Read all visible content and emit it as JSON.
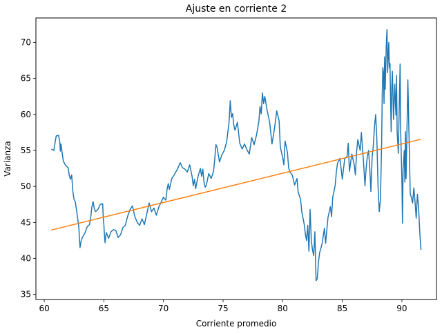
{
  "chart_data": {
    "type": "line",
    "title": "Ajuste en corriente 2",
    "xlabel": "Corriente promedio",
    "ylabel": "Varianza",
    "xlim": [
      59.3,
      92.9
    ],
    "ylim": [
      34.3,
      73.4
    ],
    "x_ticks": [
      60,
      65,
      70,
      75,
      80,
      85,
      90
    ],
    "y_ticks": [
      35,
      40,
      45,
      50,
      55,
      60,
      65,
      70
    ],
    "grid": false,
    "legend": "none",
    "series": [
      {
        "color": "#1f77b4",
        "points": [
          [
            60.6,
            55.2
          ],
          [
            60.8,
            55.0
          ],
          [
            61.0,
            57.0
          ],
          [
            61.2,
            57.1
          ],
          [
            61.3,
            56.2
          ],
          [
            61.35,
            54.9
          ],
          [
            61.4,
            55.9
          ],
          [
            61.6,
            53.5
          ],
          [
            61.8,
            52.9
          ],
          [
            62.0,
            52.6
          ],
          [
            62.1,
            51.5
          ],
          [
            62.2,
            51.0
          ],
          [
            62.3,
            51.6
          ],
          [
            62.4,
            49.3
          ],
          [
            62.5,
            48.2
          ],
          [
            62.6,
            47.9
          ],
          [
            62.7,
            46.8
          ],
          [
            62.8,
            45.6
          ],
          [
            62.9,
            44.3
          ],
          [
            63.0,
            41.5
          ],
          [
            63.1,
            42.5
          ],
          [
            63.2,
            42.9
          ],
          [
            63.4,
            43.5
          ],
          [
            63.6,
            44.4
          ],
          [
            63.8,
            44.7
          ],
          [
            63.9,
            45.8
          ],
          [
            64.0,
            47.2
          ],
          [
            64.1,
            47.9
          ],
          [
            64.2,
            46.9
          ],
          [
            64.3,
            46.5
          ],
          [
            64.5,
            46.8
          ],
          [
            64.7,
            47.5
          ],
          [
            64.9,
            47.6
          ],
          [
            64.95,
            45.6
          ],
          [
            65.0,
            44.7
          ],
          [
            65.05,
            43.2
          ],
          [
            65.1,
            42.2
          ],
          [
            65.2,
            43.6
          ],
          [
            65.4,
            42.8
          ],
          [
            65.6,
            43.7
          ],
          [
            65.8,
            44.0
          ],
          [
            66.0,
            43.9
          ],
          [
            66.2,
            42.9
          ],
          [
            66.4,
            43.3
          ],
          [
            66.6,
            44.3
          ],
          [
            66.8,
            44.6
          ],
          [
            67.0,
            45.9
          ],
          [
            67.2,
            46.8
          ],
          [
            67.4,
            47.3
          ],
          [
            67.6,
            45.8
          ],
          [
            67.8,
            45.0
          ],
          [
            68.0,
            44.6
          ],
          [
            68.2,
            45.5
          ],
          [
            68.4,
            44.7
          ],
          [
            68.6,
            46.2
          ],
          [
            68.8,
            47.7
          ],
          [
            69.0,
            46.5
          ],
          [
            69.2,
            47.0
          ],
          [
            69.4,
            46.0
          ],
          [
            69.6,
            47.1
          ],
          [
            69.8,
            47.8
          ],
          [
            70.0,
            48.5
          ],
          [
            70.2,
            48.1
          ],
          [
            70.3,
            49.6
          ],
          [
            70.4,
            50.4
          ],
          [
            70.5,
            49.6
          ],
          [
            70.7,
            51.1
          ],
          [
            70.9,
            51.6
          ],
          [
            71.2,
            52.5
          ],
          [
            71.4,
            53.3
          ],
          [
            71.6,
            52.6
          ],
          [
            71.8,
            52.4
          ],
          [
            72.0,
            52.0
          ],
          [
            72.2,
            53.0
          ],
          [
            72.4,
            51.4
          ],
          [
            72.5,
            50.1
          ],
          [
            72.6,
            51.0
          ],
          [
            72.7,
            49.7
          ],
          [
            72.9,
            51.4
          ],
          [
            73.1,
            52.5
          ],
          [
            73.2,
            51.4
          ],
          [
            73.3,
            52.4
          ],
          [
            73.4,
            50.6
          ],
          [
            73.5,
            49.9
          ],
          [
            73.6,
            50.2
          ],
          [
            73.8,
            51.8
          ],
          [
            74.0,
            51.1
          ],
          [
            74.2,
            52.1
          ],
          [
            74.3,
            53.8
          ],
          [
            74.4,
            55.8
          ],
          [
            74.5,
            55.4
          ],
          [
            74.7,
            53.4
          ],
          [
            74.9,
            54.4
          ],
          [
            75.1,
            55.0
          ],
          [
            75.3,
            56.2
          ],
          [
            75.5,
            58.9
          ],
          [
            75.6,
            61.9
          ],
          [
            75.7,
            59.6
          ],
          [
            75.8,
            60.1
          ],
          [
            75.9,
            58.5
          ],
          [
            76.0,
            57.8
          ],
          [
            76.2,
            58.9
          ],
          [
            76.4,
            56.0
          ],
          [
            76.6,
            55.2
          ],
          [
            76.8,
            55.9
          ],
          [
            77.0,
            55.1
          ],
          [
            77.2,
            54.5
          ],
          [
            77.4,
            56.8
          ],
          [
            77.6,
            55.8
          ],
          [
            77.8,
            57.1
          ],
          [
            78.0,
            59.0
          ],
          [
            78.1,
            61.1
          ],
          [
            78.2,
            60.1
          ],
          [
            78.3,
            63.0
          ],
          [
            78.4,
            61.5
          ],
          [
            78.5,
            62.5
          ],
          [
            78.7,
            60.5
          ],
          [
            78.9,
            59.0
          ],
          [
            79.0,
            57.5
          ],
          [
            79.1,
            55.9
          ],
          [
            79.3,
            57.9
          ],
          [
            79.5,
            60.5
          ],
          [
            79.7,
            59.1
          ],
          [
            79.8,
            55.5
          ],
          [
            80.0,
            54.0
          ],
          [
            80.1,
            53.0
          ],
          [
            80.2,
            56.3
          ],
          [
            80.4,
            54.7
          ],
          [
            80.5,
            52.6
          ],
          [
            80.6,
            52.0
          ],
          [
            80.8,
            51.6
          ],
          [
            81.0,
            50.2
          ],
          [
            81.2,
            51.1
          ],
          [
            81.3,
            49.2
          ],
          [
            81.5,
            48.2
          ],
          [
            81.6,
            46.5
          ],
          [
            81.8,
            44.8
          ],
          [
            81.9,
            43.4
          ],
          [
            82.0,
            42.5
          ],
          [
            82.1,
            44.6
          ],
          [
            82.2,
            41.0
          ],
          [
            82.3,
            46.8
          ],
          [
            82.4,
            42.5
          ],
          [
            82.5,
            41.2
          ],
          [
            82.6,
            40.4
          ],
          [
            82.7,
            43.7
          ],
          [
            82.8,
            36.9
          ],
          [
            82.9,
            37.2
          ],
          [
            83.0,
            39.5
          ],
          [
            83.1,
            40.8
          ],
          [
            83.3,
            42.0
          ],
          [
            83.5,
            44.2
          ],
          [
            83.6,
            42.1
          ],
          [
            83.8,
            45.7
          ],
          [
            84.0,
            47.2
          ],
          [
            84.1,
            45.8
          ],
          [
            84.2,
            48.5
          ],
          [
            84.4,
            50.1
          ],
          [
            84.5,
            52.0
          ],
          [
            84.6,
            53.2
          ],
          [
            84.8,
            53.9
          ],
          [
            84.9,
            52.5
          ],
          [
            85.0,
            51.0
          ],
          [
            85.2,
            53.8
          ],
          [
            85.4,
            54.2
          ],
          [
            85.5,
            56.0
          ],
          [
            85.6,
            52.1
          ],
          [
            85.8,
            54.5
          ],
          [
            86.0,
            53.0
          ],
          [
            86.1,
            51.6
          ],
          [
            86.2,
            54.8
          ],
          [
            86.3,
            56.5
          ],
          [
            86.5,
            55.0
          ],
          [
            86.6,
            57.5
          ],
          [
            86.8,
            52.9
          ],
          [
            86.9,
            50.1
          ],
          [
            87.0,
            52.5
          ],
          [
            87.1,
            54.2
          ],
          [
            87.2,
            55.0
          ],
          [
            87.3,
            52.7
          ],
          [
            87.4,
            49.3
          ],
          [
            87.5,
            54.0
          ],
          [
            87.6,
            55.6
          ],
          [
            87.7,
            58.3
          ],
          [
            87.8,
            60.0
          ],
          [
            87.9,
            56.5
          ],
          [
            88.0,
            50.0
          ],
          [
            88.1,
            46.5
          ],
          [
            88.2,
            48.2
          ],
          [
            88.3,
            56.0
          ],
          [
            88.35,
            62.8
          ],
          [
            88.4,
            66.5
          ],
          [
            88.45,
            65.8
          ],
          [
            88.5,
            61.5
          ],
          [
            88.55,
            68.0
          ],
          [
            88.6,
            63.5
          ],
          [
            88.65,
            66.9
          ],
          [
            88.7,
            70.2
          ],
          [
            88.75,
            71.8
          ],
          [
            88.8,
            65.8
          ],
          [
            88.9,
            70.0
          ],
          [
            88.95,
            66.5
          ],
          [
            89.0,
            67.1
          ],
          [
            89.05,
            62.0
          ],
          [
            89.1,
            57.6
          ],
          [
            89.15,
            63.8
          ],
          [
            89.2,
            66.0
          ],
          [
            89.3,
            59.3
          ],
          [
            89.4,
            64.2
          ],
          [
            89.5,
            59.9
          ],
          [
            89.55,
            65.4
          ],
          [
            89.6,
            57.6
          ],
          [
            89.7,
            54.6
          ],
          [
            89.8,
            62.8
          ],
          [
            89.85,
            67.0
          ],
          [
            89.9,
            57.5
          ],
          [
            90.0,
            50.8
          ],
          [
            90.05,
            44.9
          ],
          [
            90.1,
            52.4
          ],
          [
            90.2,
            55.0
          ],
          [
            90.25,
            50.6
          ],
          [
            90.3,
            57.6
          ],
          [
            90.35,
            51.1
          ],
          [
            90.4,
            55.6
          ],
          [
            90.5,
            64.8
          ],
          [
            90.6,
            56.8
          ],
          [
            90.7,
            49.0
          ],
          [
            90.8,
            48.4
          ],
          [
            90.9,
            47.7
          ],
          [
            91.0,
            49.8
          ],
          [
            91.1,
            47.9
          ],
          [
            91.2,
            45.6
          ],
          [
            91.3,
            48.9
          ],
          [
            91.4,
            47.0
          ],
          [
            91.5,
            43.6
          ],
          [
            91.6,
            41.2
          ]
        ]
      },
      {
        "color": "#ff7f0e",
        "points": [
          [
            60.6,
            43.95
          ],
          [
            91.6,
            56.55
          ]
        ]
      }
    ]
  }
}
